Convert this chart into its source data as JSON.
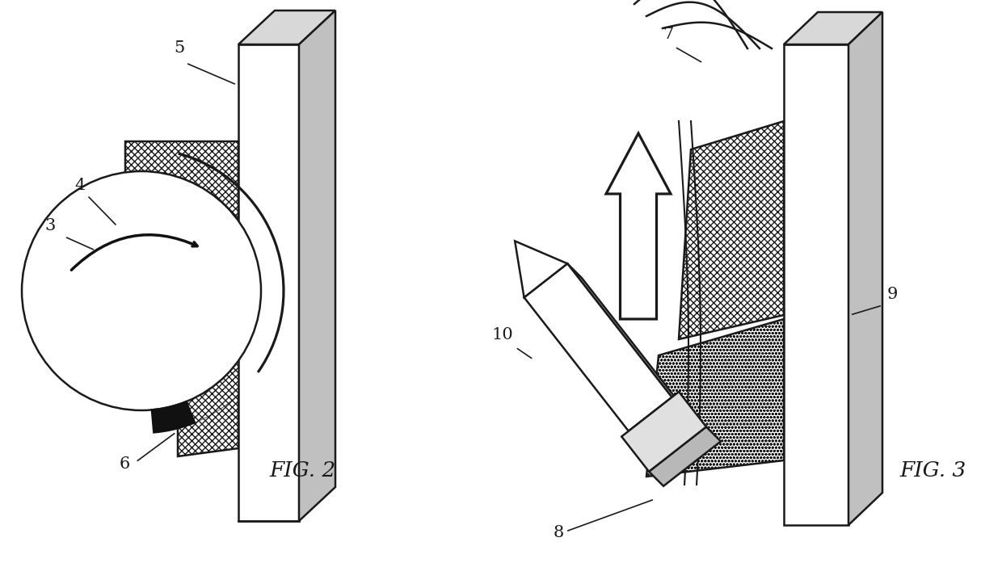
{
  "bg_color": "#ffffff",
  "line_color": "#1a1a1a",
  "fig2_label": "FIG. 2",
  "fig3_label": "FIG. 3",
  "lw": 1.8
}
